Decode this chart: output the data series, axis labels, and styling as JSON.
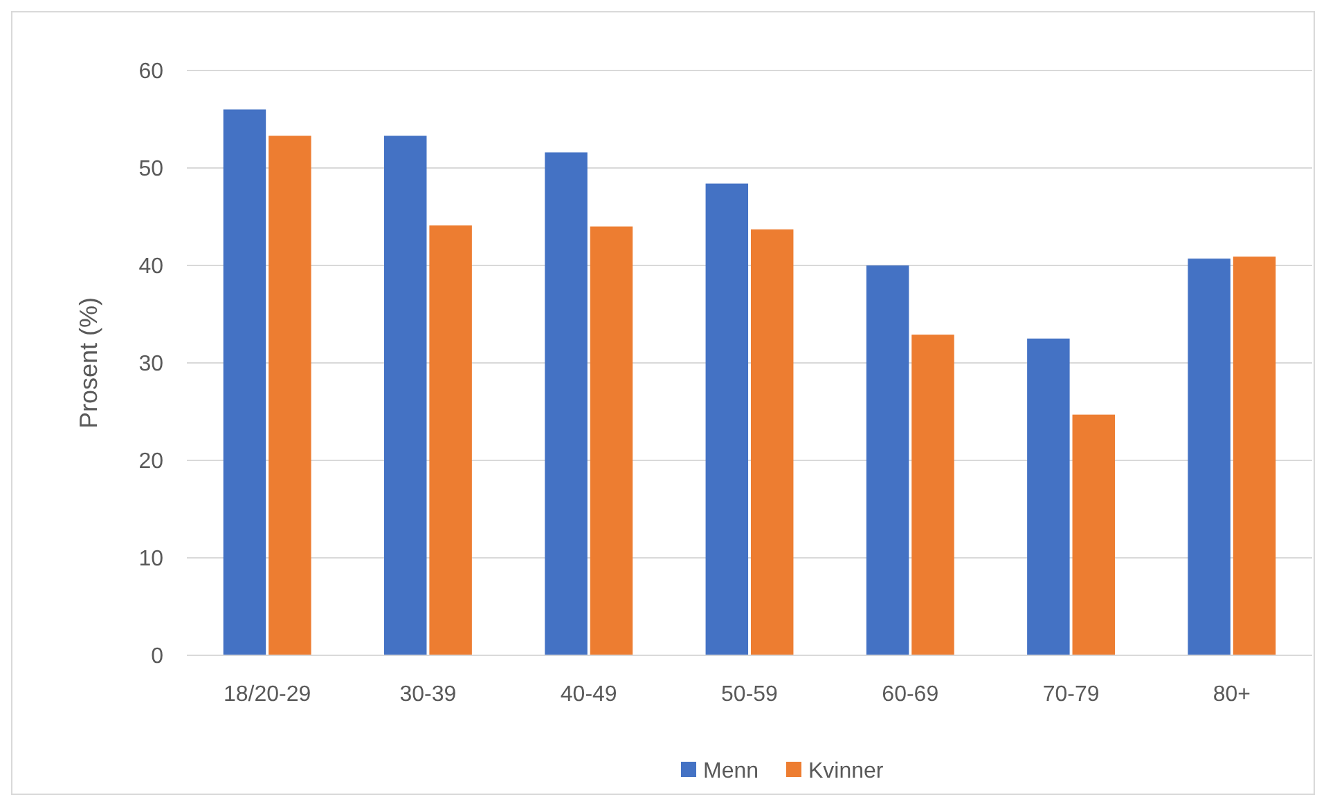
{
  "chart_data": {
    "type": "bar",
    "ylabel": "Prosent (%)",
    "categories": [
      "18/20-29",
      "30-39",
      "40-49",
      "50-59",
      "60-69",
      "70-79",
      "80+"
    ],
    "series": [
      {
        "name": "Menn",
        "color": "#4472c4",
        "values": [
          56.0,
          53.3,
          51.6,
          48.4,
          40.0,
          32.5,
          40.7
        ]
      },
      {
        "name": "Kvinner",
        "color": "#ed7d31",
        "values": [
          53.3,
          44.1,
          44.0,
          43.7,
          32.9,
          24.7,
          40.9
        ]
      }
    ],
    "ylim": [
      0,
      60
    ],
    "yticks": [
      0,
      10,
      20,
      30,
      40,
      50,
      60
    ],
    "grid": "y",
    "legend": "bottom"
  }
}
